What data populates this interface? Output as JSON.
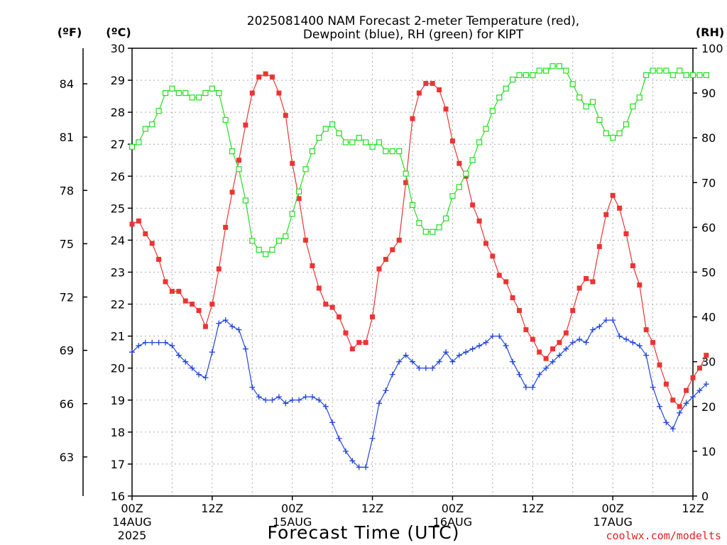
{
  "chart_data": {
    "type": "line",
    "title_line1": "2025081400 NAM Forecast 2-meter Temperature (red),",
    "title_line2": "Dewpoint (blue), RH (green) for KIPT",
    "xlabel": "Forecast Time (UTC)",
    "credit": "coolwx.com/modelts",
    "unit_f": "(ºF)",
    "unit_c": "(ºC)",
    "unit_rh": "(RH)",
    "x_hours_range": [
      0,
      84
    ],
    "x_step_hours": 1,
    "x_ticks": [
      {
        "hour": 0,
        "label": "00Z",
        "date": "14AUG",
        "year": "2025"
      },
      {
        "hour": 12,
        "label": "12Z",
        "date": "",
        "year": ""
      },
      {
        "hour": 24,
        "label": "00Z",
        "date": "15AUG",
        "year": ""
      },
      {
        "hour": 36,
        "label": "12Z",
        "date": "",
        "year": ""
      },
      {
        "hour": 48,
        "label": "00Z",
        "date": "16AUG",
        "year": ""
      },
      {
        "hour": 60,
        "label": "12Z",
        "date": "",
        "year": ""
      },
      {
        "hour": 72,
        "label": "00Z",
        "date": "17AUG",
        "year": ""
      },
      {
        "hour": 84,
        "label": "12Z",
        "date": "",
        "year": ""
      }
    ],
    "y_celsius": {
      "range": [
        16,
        30
      ],
      "ticks": [
        "16",
        "17",
        "18",
        "19",
        "20",
        "21",
        "22",
        "23",
        "24",
        "25",
        "26",
        "27",
        "28",
        "29",
        "30"
      ]
    },
    "y_fahrenheit": {
      "ticks": [
        "63",
        "66",
        "69",
        "72",
        "75",
        "78",
        "81",
        "84"
      ]
    },
    "y_rh": {
      "range": [
        0,
        100
      ],
      "ticks": [
        "0",
        "10",
        "20",
        "30",
        "40",
        "50",
        "60",
        "70",
        "80",
        "90",
        "100"
      ]
    },
    "grid": true,
    "series": [
      {
        "name": "Temperature",
        "unit": "°C",
        "color": "#ee3333",
        "marker": "filled-square",
        "values": [
          24.5,
          24.6,
          24.2,
          23.9,
          23.4,
          22.7,
          22.4,
          22.4,
          22.1,
          22.0,
          21.8,
          21.3,
          22.0,
          23.1,
          24.4,
          25.5,
          26.5,
          27.6,
          28.6,
          29.1,
          29.2,
          29.1,
          28.6,
          27.9,
          26.4,
          25.3,
          24.0,
          23.2,
          22.5,
          22.0,
          21.9,
          21.6,
          21.1,
          20.6,
          20.8,
          20.8,
          21.6,
          23.1,
          23.4,
          23.7,
          24.0,
          25.8,
          27.8,
          28.6,
          28.9,
          28.9,
          28.7,
          28.1,
          27.1,
          26.4,
          26.0,
          25.1,
          24.6,
          23.9,
          23.5,
          22.9,
          22.7,
          22.2,
          21.8,
          21.2,
          20.9,
          20.5,
          20.3,
          20.6,
          20.8,
          21.1,
          21.8,
          22.5,
          22.8,
          22.7,
          23.8,
          24.8,
          25.4,
          25.0,
          24.2,
          23.2,
          22.6,
          21.2,
          20.8,
          20.1,
          19.5,
          19.0,
          18.8,
          19.3,
          19.7,
          20.0,
          20.4
        ]
      },
      {
        "name": "Dewpoint",
        "unit": "°C",
        "color": "#2244dd",
        "marker": "plus",
        "values": [
          20.5,
          20.7,
          20.8,
          20.8,
          20.8,
          20.8,
          20.7,
          20.4,
          20.2,
          20.0,
          19.8,
          19.7,
          20.5,
          21.4,
          21.5,
          21.3,
          21.2,
          20.6,
          19.4,
          19.1,
          19.0,
          19.0,
          19.1,
          18.9,
          19.0,
          19.0,
          19.1,
          19.1,
          19.0,
          18.8,
          18.3,
          17.8,
          17.4,
          17.1,
          16.9,
          16.9,
          17.8,
          18.9,
          19.3,
          19.8,
          20.2,
          20.4,
          20.2,
          20.0,
          20.0,
          20.0,
          20.2,
          20.5,
          20.2,
          20.4,
          20.5,
          20.6,
          20.7,
          20.8,
          21.0,
          21.0,
          20.7,
          20.2,
          19.8,
          19.4,
          19.4,
          19.8,
          20.0,
          20.2,
          20.4,
          20.6,
          20.8,
          20.9,
          20.8,
          21.2,
          21.3,
          21.5,
          21.5,
          21.0,
          20.9,
          20.8,
          20.7,
          20.4,
          19.4,
          18.8,
          18.3,
          18.1,
          18.6,
          18.9,
          19.1,
          19.3,
          19.5
        ]
      },
      {
        "name": "RH",
        "unit": "%",
        "color": "#22dd22",
        "marker": "open-square",
        "values": [
          78,
          79,
          82,
          83,
          86,
          90,
          91,
          90,
          90,
          89,
          89,
          90,
          91,
          90,
          84,
          77,
          73,
          66,
          57,
          55,
          54,
          55,
          57,
          58,
          63,
          68,
          73,
          77,
          80,
          82,
          83,
          81,
          79,
          79,
          80,
          79,
          78,
          79,
          77,
          77,
          77,
          72,
          65,
          61,
          59,
          59,
          60,
          62,
          67,
          69,
          72,
          75,
          79,
          82,
          86,
          89,
          91,
          93,
          94,
          94,
          94,
          95,
          95,
          96,
          96,
          95,
          92,
          89,
          87,
          88,
          84,
          81,
          80,
          81,
          83,
          87,
          89,
          94,
          95,
          95,
          95,
          94,
          95,
          94,
          94,
          94,
          94
        ]
      }
    ]
  }
}
